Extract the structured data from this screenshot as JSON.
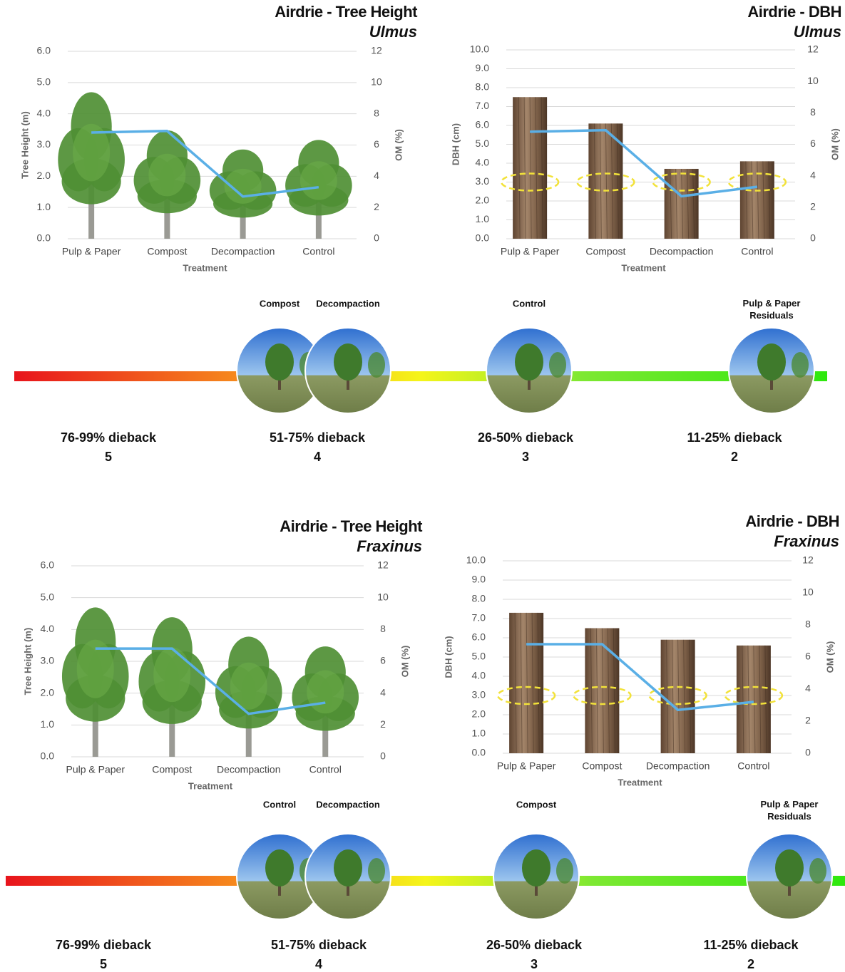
{
  "chart_data": [
    {
      "type": "bar",
      "title": "Airdrie - Tree Height",
      "subtitle": "Ulmus",
      "xlabel": "Treatment",
      "ylabel": "Tree Height (m)",
      "y2label": "OM (%)",
      "categories": [
        "Pulp & Paper",
        "Compost",
        "Decompaction",
        "Control"
      ],
      "series": [
        {
          "values": [
            4.6,
            3.4,
            2.8,
            3.1
          ],
          "color": "#4f8f34"
        },
        {
          "values": [
            6.8,
            6.9,
            2.7,
            3.3
          ],
          "color": "#5aafe6",
          "axis": "y2"
        }
      ],
      "ylim": [
        0,
        6
      ],
      "yticks": [
        {
          "value": 0,
          "label": "0.0"
        },
        {
          "value": 1,
          "label": "1.0"
        },
        {
          "value": 2,
          "label": "2.0"
        },
        {
          "value": 3,
          "label": "3.0"
        },
        {
          "value": 4,
          "label": "4.0"
        },
        {
          "value": 5,
          "label": "5.0"
        },
        {
          "value": 6,
          "label": "6.0"
        }
      ],
      "y2lim": [
        0,
        12
      ],
      "y2ticks": [
        0,
        2,
        4,
        6,
        8,
        10,
        12
      ],
      "grid": true
    },
    {
      "type": "bar",
      "title": "Airdrie - DBH",
      "subtitle": "Ulmus",
      "xlabel": "Treatment",
      "ylabel": "DBH (cm)",
      "y2label": "OM (%)",
      "categories": [
        "Pulp & Paper",
        "Compost",
        "Decompaction",
        "Control"
      ],
      "series": [
        {
          "values": [
            7.5,
            6.1,
            3.7,
            4.1
          ],
          "color": "#8a6a50"
        },
        {
          "values": [
            6.8,
            6.9,
            2.7,
            3.3
          ],
          "color": "#5aafe6",
          "axis": "y2"
        }
      ],
      "ylim": [
        0,
        10
      ],
      "yticks": [
        {
          "value": 0,
          "label": "0.0"
        },
        {
          "value": 1,
          "label": "1.0"
        },
        {
          "value": 2,
          "label": "2.0"
        },
        {
          "value": 3,
          "label": "3.0"
        },
        {
          "value": 4,
          "label": "4.0"
        },
        {
          "value": 5,
          "label": "5.0"
        },
        {
          "value": 6,
          "label": "6.0"
        },
        {
          "value": 7,
          "label": "7.0"
        },
        {
          "value": 8,
          "label": "8.0"
        },
        {
          "value": 9,
          "label": "9.0"
        },
        {
          "value": 10,
          "label": "10.0"
        }
      ],
      "y2lim": [
        0,
        12
      ],
      "y2ticks": [
        0,
        2,
        4,
        6,
        8,
        10,
        12
      ],
      "grid": true
    },
    {
      "type": "bar",
      "title": "Airdrie - Tree Height",
      "subtitle": "Fraxinus",
      "xlabel": "Treatment",
      "ylabel": "Tree Height (m)",
      "y2label": "OM (%)",
      "categories": [
        "Pulp & Paper",
        "Compost",
        "Decompaction",
        "Control"
      ],
      "series": [
        {
          "values": [
            4.6,
            4.3,
            3.7,
            3.4
          ],
          "color": "#4f8f34"
        },
        {
          "values": [
            6.8,
            6.8,
            2.7,
            3.4
          ],
          "color": "#5aafe6",
          "axis": "y2"
        }
      ],
      "ylim": [
        0,
        6
      ],
      "yticks": [
        {
          "value": 0,
          "label": "0.0"
        },
        {
          "value": 1,
          "label": "1.0"
        },
        {
          "value": 2,
          "label": "2.0"
        },
        {
          "value": 3,
          "label": "3.0"
        },
        {
          "value": 4,
          "label": "4.0"
        },
        {
          "value": 5,
          "label": "5.0"
        },
        {
          "value": 6,
          "label": "6.0"
        }
      ],
      "y2lim": [
        0,
        12
      ],
      "y2ticks": [
        0,
        2,
        4,
        6,
        8,
        10,
        12
      ],
      "grid": true
    },
    {
      "type": "bar",
      "title": "Airdrie - DBH",
      "subtitle": "Fraxinus",
      "xlabel": "Treatment",
      "ylabel": "DBH (cm)",
      "y2label": "OM (%)",
      "categories": [
        "Pulp & Paper",
        "Compost",
        "Decompaction",
        "Control"
      ],
      "series": [
        {
          "values": [
            7.3,
            6.5,
            5.9,
            5.6
          ],
          "color": "#8a6a50"
        },
        {
          "values": [
            6.8,
            6.8,
            2.7,
            3.2
          ],
          "color": "#5aafe6",
          "axis": "y2"
        }
      ],
      "ylim": [
        0,
        10
      ],
      "yticks": [
        {
          "value": 0,
          "label": "0.0"
        },
        {
          "value": 1,
          "label": "1.0"
        },
        {
          "value": 2,
          "label": "2.0"
        },
        {
          "value": 3,
          "label": "3.0"
        },
        {
          "value": 4,
          "label": "4.0"
        },
        {
          "value": 5,
          "label": "5.0"
        },
        {
          "value": 6,
          "label": "6.0"
        },
        {
          "value": 7,
          "label": "7.0"
        },
        {
          "value": 8,
          "label": "8.0"
        },
        {
          "value": 9,
          "label": "9.0"
        },
        {
          "value": 10,
          "label": "10.0"
        }
      ],
      "y2lim": [
        0,
        12
      ],
      "y2ticks": [
        0,
        2,
        4,
        6,
        8,
        10,
        12
      ],
      "grid": true
    }
  ],
  "scales": [
    {
      "stages": [
        {
          "label": "76-99% dieback",
          "score": 5
        },
        {
          "label": "51-75% dieback",
          "score": 4,
          "photos": [
            "Compost",
            "Decompaction"
          ]
        },
        {
          "label": "26-50% dieback",
          "score": 3,
          "photos": [
            "Control"
          ]
        },
        {
          "label": "11-25% dieback",
          "score": 2,
          "photos": [
            "Pulp & Paper Residuals"
          ]
        }
      ]
    },
    {
      "stages": [
        {
          "label": "76-99% dieback",
          "score": 5
        },
        {
          "label": "51-75% dieback",
          "score": 4,
          "photos": [
            "Control",
            "Decompaction"
          ]
        },
        {
          "label": "26-50% dieback",
          "score": 3,
          "photos": [
            "Compost"
          ]
        },
        {
          "label": "11-25% dieback",
          "score": 2,
          "photos": [
            "Pulp & Paper Residuals"
          ]
        }
      ]
    }
  ]
}
